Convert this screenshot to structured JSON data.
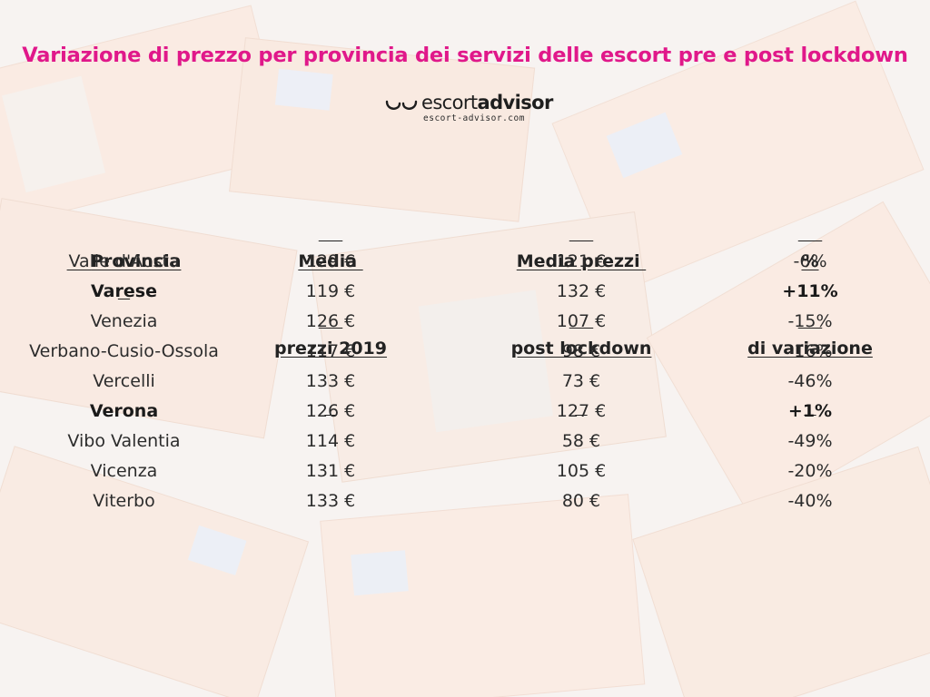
{
  "title": "Variazione di prezzo per provincia dei servizi delle escort pre e post lockdown",
  "logo": {
    "name_part1": "escort",
    "name_part2": "advisor",
    "url": "escort-advisor.com"
  },
  "colors": {
    "title": "#e0188a",
    "text": "#2c2c2c",
    "banknote_tint": "#f2cdb8"
  },
  "columns": [
    {
      "line1": "",
      "line2": "Provincia"
    },
    {
      "line1": "Media ",
      "line2": "prezzi 2019"
    },
    {
      "line1": "Media prezzi ",
      "line2": "post lockdown"
    },
    {
      "line1": "%",
      "line2": "di variazione"
    }
  ],
  "rows": [
    {
      "provincia": "Valle d'Aosta",
      "prezzi_2019": "129 €",
      "post_lockdown": "121 €",
      "variazione": "-6%",
      "highlight": false
    },
    {
      "provincia": "Varese",
      "prezzi_2019": "119 €",
      "post_lockdown": "132 €",
      "variazione": "+11%",
      "highlight": true
    },
    {
      "provincia": "Venezia",
      "prezzi_2019": "126 €",
      "post_lockdown": "107 €",
      "variazione": "-15%",
      "highlight": false
    },
    {
      "provincia": "Verbano-Cusio-Ossola",
      "prezzi_2019": "117 €",
      "post_lockdown": "98 €",
      "variazione": "-16%",
      "highlight": false
    },
    {
      "provincia": "Vercelli",
      "prezzi_2019": "133 €",
      "post_lockdown": "73 €",
      "variazione": "-46%",
      "highlight": false
    },
    {
      "provincia": "Verona",
      "prezzi_2019": "126 €",
      "post_lockdown": "127 €",
      "variazione": "+1%",
      "highlight": true
    },
    {
      "provincia": "Vibo Valentia",
      "prezzi_2019": "114 €",
      "post_lockdown": "58 €",
      "variazione": "-49%",
      "highlight": false
    },
    {
      "provincia": "Vicenza",
      "prezzi_2019": "131 €",
      "post_lockdown": "105 €",
      "variazione": "-20%",
      "highlight": false
    },
    {
      "provincia": "Viterbo",
      "prezzi_2019": "133 €",
      "post_lockdown": "80 €",
      "variazione": "-40%",
      "highlight": false
    }
  ],
  "chart_data": {
    "type": "table",
    "title": "Variazione di prezzo per provincia dei servizi delle escort pre e post lockdown",
    "columns": [
      "Provincia",
      "Media prezzi 2019",
      "Media prezzi post lockdown",
      "% di variazione"
    ],
    "rows": [
      [
        "Valle d'Aosta",
        129,
        121,
        -6
      ],
      [
        "Varese",
        119,
        132,
        11
      ],
      [
        "Venezia",
        126,
        107,
        -15
      ],
      [
        "Verbano-Cusio-Ossola",
        117,
        98,
        -16
      ],
      [
        "Vercelli",
        133,
        73,
        -46
      ],
      [
        "Verona",
        126,
        127,
        1
      ],
      [
        "Vibo Valentia",
        114,
        58,
        -49
      ],
      [
        "Vicenza",
        131,
        105,
        -20
      ],
      [
        "Viterbo",
        133,
        80,
        -40
      ]
    ]
  }
}
